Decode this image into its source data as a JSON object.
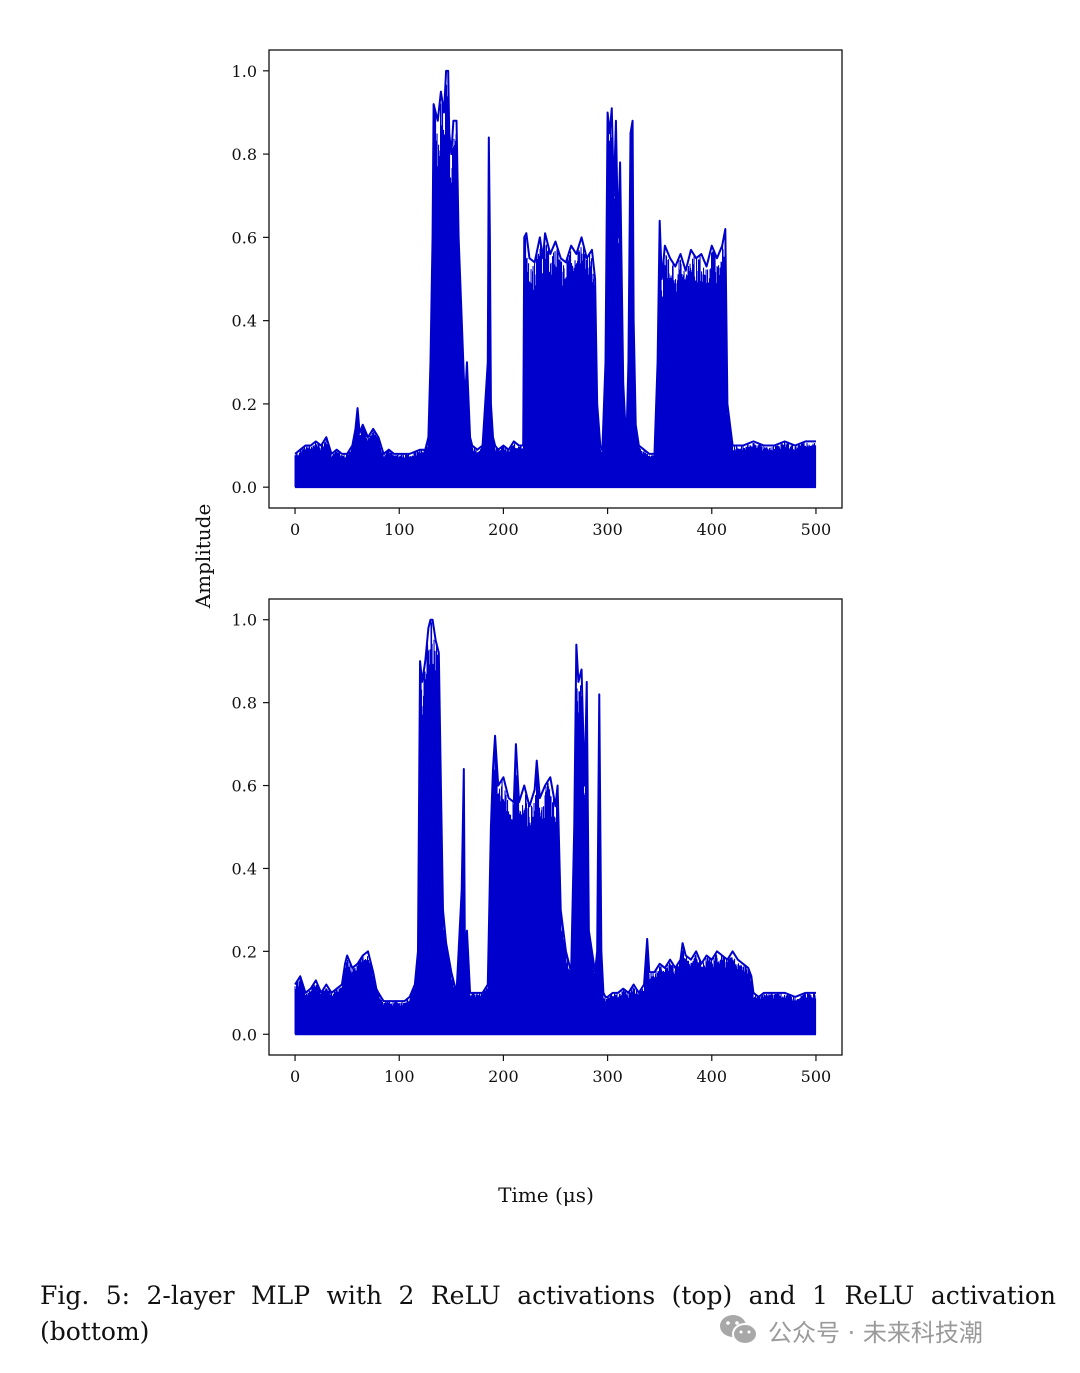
{
  "figure": {
    "shared_xlabel": "Time (μs)",
    "shared_ylabel": "Amplitude",
    "caption": "Fig. 5: 2-layer MLP with 2 ReLU activations (top) and 1 ReLU activation (bottom)",
    "line_color": "#0000cc"
  },
  "watermark": {
    "text": "公众号 · 未来科技潮",
    "icon": "wechat-icon"
  },
  "chart_data": [
    {
      "type": "line",
      "panel": "top",
      "xlim": [
        -25,
        525
      ],
      "ylim": [
        -0.05,
        1.05
      ],
      "xticks": [
        0,
        100,
        200,
        300,
        400,
        500
      ],
      "yticks": [
        0.0,
        0.2,
        0.4,
        0.6,
        0.8,
        1.0
      ],
      "ytick_labels": [
        "0.0",
        "0.2",
        "0.4",
        "0.6",
        "0.8",
        "1.0"
      ],
      "grid": false,
      "series": [
        {
          "baseline": 0.0,
          "envelope_x": [
            0,
            5,
            10,
            15,
            20,
            25,
            30,
            35,
            40,
            45,
            50,
            55,
            58,
            60,
            62,
            65,
            70,
            75,
            80,
            85,
            90,
            95,
            100,
            110,
            120,
            125,
            128,
            130,
            132,
            133,
            135,
            137,
            140,
            143,
            145,
            147,
            148,
            150,
            152,
            155,
            157,
            160,
            163,
            165,
            168,
            170,
            175,
            180,
            185,
            186,
            187,
            188,
            190,
            192,
            195,
            200,
            205,
            210,
            215,
            219,
            220,
            222,
            225,
            230,
            235,
            238,
            240,
            245,
            250,
            255,
            260,
            265,
            270,
            275,
            280,
            285,
            288,
            290,
            293,
            295,
            298,
            300,
            302,
            304,
            306,
            308,
            310,
            312,
            315,
            318,
            320,
            322,
            324,
            325,
            327,
            330,
            335,
            340,
            345,
            348,
            350,
            352,
            355,
            360,
            365,
            370,
            375,
            380,
            385,
            390,
            395,
            400,
            405,
            410,
            413,
            415,
            420,
            430,
            440,
            450,
            460,
            470,
            480,
            490,
            500
          ],
          "envelope_y": [
            0.08,
            0.09,
            0.1,
            0.1,
            0.11,
            0.1,
            0.12,
            0.08,
            0.09,
            0.08,
            0.08,
            0.1,
            0.14,
            0.19,
            0.13,
            0.15,
            0.12,
            0.14,
            0.12,
            0.08,
            0.09,
            0.08,
            0.08,
            0.08,
            0.09,
            0.09,
            0.12,
            0.3,
            0.6,
            0.92,
            0.9,
            0.88,
            0.95,
            0.9,
            1.0,
            1.0,
            0.85,
            0.8,
            0.88,
            0.88,
            0.6,
            0.4,
            0.2,
            0.3,
            0.12,
            0.1,
            0.09,
            0.1,
            0.3,
            0.84,
            0.6,
            0.2,
            0.12,
            0.1,
            0.09,
            0.1,
            0.09,
            0.11,
            0.1,
            0.1,
            0.6,
            0.61,
            0.55,
            0.54,
            0.6,
            0.55,
            0.61,
            0.56,
            0.59,
            0.55,
            0.54,
            0.58,
            0.56,
            0.6,
            0.55,
            0.57,
            0.5,
            0.2,
            0.1,
            0.09,
            0.3,
            0.9,
            0.85,
            0.91,
            0.7,
            0.88,
            0.6,
            0.78,
            0.25,
            0.1,
            0.3,
            0.85,
            0.88,
            0.4,
            0.15,
            0.1,
            0.09,
            0.08,
            0.08,
            0.3,
            0.64,
            0.5,
            0.58,
            0.55,
            0.53,
            0.56,
            0.52,
            0.57,
            0.55,
            0.56,
            0.53,
            0.58,
            0.55,
            0.58,
            0.62,
            0.2,
            0.1,
            0.1,
            0.11,
            0.1,
            0.1,
            0.11,
            0.1,
            0.11,
            0.11
          ]
        }
      ]
    },
    {
      "type": "line",
      "panel": "bottom",
      "xlim": [
        -25,
        525
      ],
      "ylim": [
        -0.05,
        1.05
      ],
      "xticks": [
        0,
        100,
        200,
        300,
        400,
        500
      ],
      "yticks": [
        0.0,
        0.2,
        0.4,
        0.6,
        0.8,
        1.0
      ],
      "ytick_labels": [
        "0.0",
        "0.2",
        "0.4",
        "0.6",
        "0.8",
        "1.0"
      ],
      "grid": false,
      "series": [
        {
          "baseline": 0.0,
          "envelope_x": [
            0,
            5,
            10,
            15,
            20,
            25,
            30,
            35,
            40,
            45,
            48,
            50,
            55,
            60,
            65,
            70,
            75,
            78,
            80,
            85,
            90,
            95,
            100,
            105,
            110,
            115,
            118,
            120,
            122,
            125,
            128,
            130,
            132,
            135,
            138,
            140,
            142,
            145,
            150,
            155,
            160,
            162,
            163,
            165,
            168,
            170,
            175,
            180,
            185,
            188,
            190,
            192,
            195,
            200,
            205,
            210,
            212,
            215,
            220,
            225,
            230,
            232,
            235,
            240,
            245,
            250,
            252,
            255,
            260,
            265,
            268,
            270,
            272,
            275,
            278,
            280,
            282,
            285,
            288,
            290,
            292,
            294,
            296,
            298,
            300,
            305,
            310,
            315,
            320,
            325,
            330,
            335,
            338,
            340,
            345,
            350,
            355,
            360,
            365,
            370,
            372,
            375,
            380,
            385,
            390,
            395,
            400,
            405,
            410,
            415,
            420,
            425,
            430,
            435,
            438,
            440,
            445,
            450,
            460,
            470,
            480,
            490,
            500
          ],
          "envelope_y": [
            0.12,
            0.14,
            0.1,
            0.11,
            0.13,
            0.1,
            0.12,
            0.1,
            0.11,
            0.12,
            0.17,
            0.19,
            0.16,
            0.17,
            0.19,
            0.2,
            0.15,
            0.11,
            0.1,
            0.08,
            0.08,
            0.08,
            0.08,
            0.08,
            0.09,
            0.12,
            0.2,
            0.9,
            0.85,
            0.9,
            0.98,
            1.0,
            1.0,
            0.95,
            0.92,
            0.6,
            0.3,
            0.22,
            0.15,
            0.1,
            0.35,
            0.64,
            0.2,
            0.25,
            0.1,
            0.1,
            0.1,
            0.1,
            0.12,
            0.5,
            0.64,
            0.72,
            0.6,
            0.62,
            0.57,
            0.56,
            0.7,
            0.56,
            0.6,
            0.55,
            0.59,
            0.66,
            0.57,
            0.6,
            0.62,
            0.55,
            0.6,
            0.3,
            0.2,
            0.15,
            0.5,
            0.94,
            0.85,
            0.88,
            0.6,
            0.85,
            0.25,
            0.2,
            0.15,
            0.2,
            0.82,
            0.2,
            0.1,
            0.09,
            0.09,
            0.1,
            0.1,
            0.11,
            0.1,
            0.12,
            0.1,
            0.12,
            0.23,
            0.15,
            0.15,
            0.17,
            0.16,
            0.18,
            0.16,
            0.18,
            0.22,
            0.19,
            0.18,
            0.2,
            0.17,
            0.19,
            0.18,
            0.2,
            0.19,
            0.18,
            0.2,
            0.18,
            0.17,
            0.16,
            0.14,
            0.1,
            0.09,
            0.1,
            0.1,
            0.1,
            0.09,
            0.1,
            0.1
          ]
        }
      ]
    }
  ]
}
